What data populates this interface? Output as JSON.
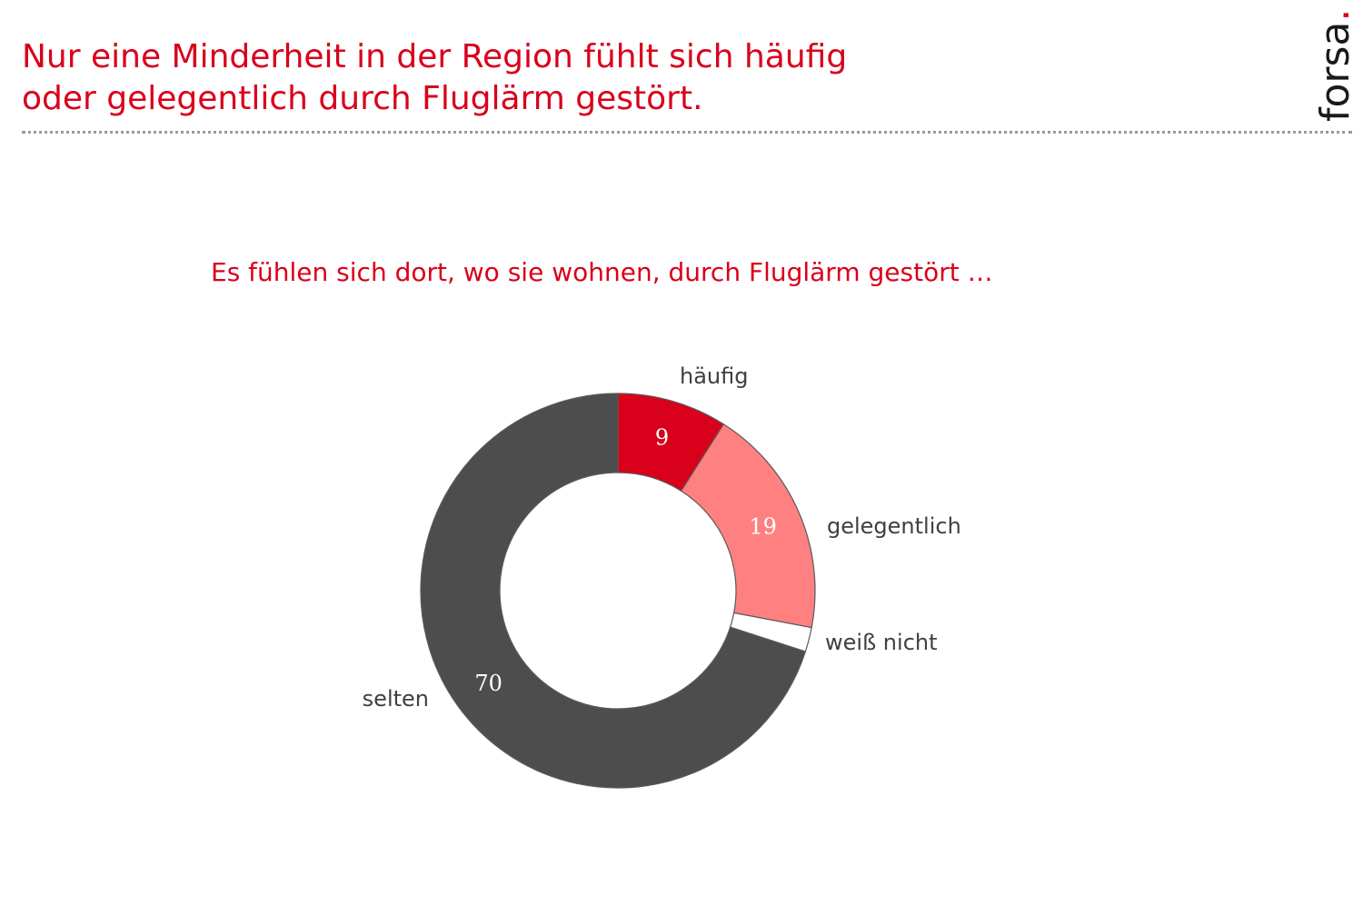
{
  "header": {
    "title_line1": "Nur eine Minderheit in der Region fühlt sich häufig",
    "title_line2": "oder gelegentlich durch Fluglärm gestört.",
    "logo_text": "forsa",
    "logo_dot": "."
  },
  "chart_data": {
    "type": "pie",
    "donut": true,
    "subtitle": "Es fühlen sich dort, wo sie wohnen, durch Fluglärm gestört …",
    "unit": "%",
    "categories": [
      "häufig",
      "gelegentlich",
      "weiß nicht",
      "selten"
    ],
    "values": [
      9,
      19,
      2,
      70
    ],
    "value_labels": [
      "9",
      "19",
      "",
      "70"
    ],
    "colors": [
      "#d9001b",
      "#ff8080",
      "#ffffff",
      "#4d4d4d"
    ],
    "start": "12 o'clock",
    "direction": "clockwise",
    "legend": "labels next to slices"
  }
}
